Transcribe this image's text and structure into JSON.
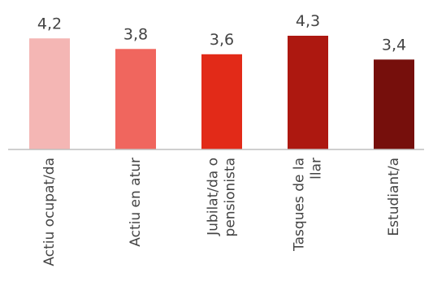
{
  "chart_data": {
    "type": "bar",
    "categories": [
      [
        "Actiu ocupat/da"
      ],
      [
        "Actiu en atur"
      ],
      [
        "Jubilat/da o",
        "pensionista"
      ],
      [
        "Tasques de la",
        "llar"
      ],
      [
        "Estudiant/a"
      ]
    ],
    "values": [
      4.2,
      3.8,
      3.6,
      4.3,
      3.4
    ],
    "value_labels": [
      "4,2",
      "3,8",
      "3,6",
      "4,3",
      "3,4"
    ],
    "colors": [
      "#f4b6b4",
      "#f0665e",
      "#e22a18",
      "#ad1810",
      "#760f0c"
    ],
    "axis_color": "#bfbfbf",
    "ylim": [
      0,
      4.3
    ],
    "grid": false,
    "legend": "none"
  }
}
